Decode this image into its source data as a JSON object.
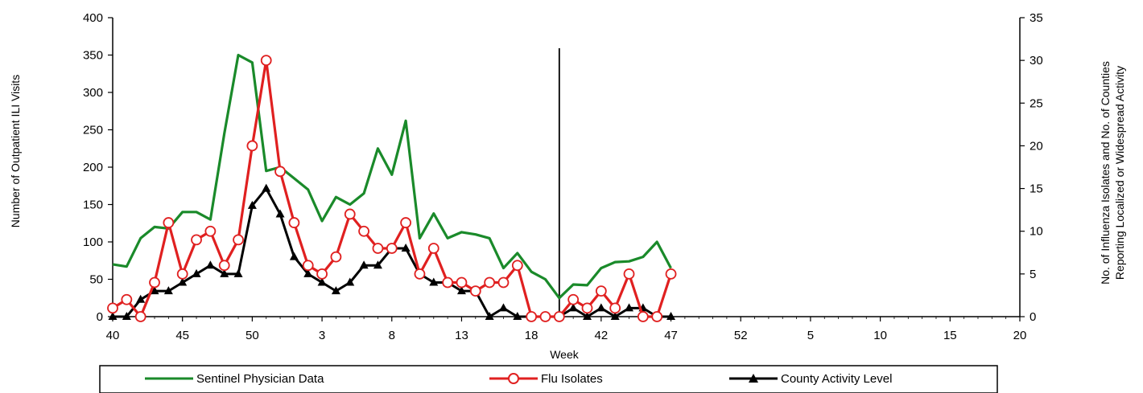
{
  "chart_data": {
    "type": "line",
    "title": "",
    "xlabel": "Week",
    "ylabel": "Number of Outpatient ILI Visits",
    "ylabel_right_line1": "No. of Influenza Isolates and No. of Counties",
    "ylabel_right_line2": "Reporting Localized or Widespread Activity",
    "ylim": [
      0,
      400
    ],
    "ylim_right": [
      0,
      35
    ],
    "yticks_left": [
      0,
      50,
      100,
      150,
      200,
      250,
      300,
      350,
      400
    ],
    "yticks_right": [
      0,
      5,
      10,
      15,
      20,
      25,
      30,
      35
    ],
    "xticks": [
      "40",
      "45",
      "50",
      "3",
      "8",
      "13",
      "18",
      "42",
      "47",
      "52",
      "5",
      "10",
      "15",
      "20"
    ],
    "x_index_range": [
      0,
      65
    ],
    "season_divider_index": 32,
    "legend": "bottom",
    "colors": {
      "sentinel": "#1a8a2a",
      "flu": "#e02020",
      "county": "#000000"
    },
    "series": [
      {
        "name": "Sentinel Physician Data",
        "axis": "left",
        "values": [
          70,
          67,
          105,
          120,
          118,
          140,
          140,
          130,
          245,
          350,
          340,
          195,
          200,
          185,
          170,
          128,
          160,
          150,
          165,
          225,
          190,
          262,
          105,
          138,
          105,
          113,
          110,
          105,
          65,
          85,
          60,
          50,
          25,
          43,
          42,
          65,
          73,
          74,
          80,
          100,
          65
        ]
      },
      {
        "name": "Flu Isolates",
        "axis": "right",
        "values": [
          1,
          2,
          0,
          4,
          11,
          5,
          9,
          10,
          6,
          9,
          20,
          30,
          17,
          11,
          6,
          5,
          7,
          12,
          10,
          8,
          8,
          11,
          5,
          8,
          4,
          4,
          3,
          4,
          4,
          6,
          0,
          0,
          0,
          2,
          1,
          3,
          1,
          5,
          0,
          0,
          5
        ]
      },
      {
        "name": "County Activity Level",
        "axis": "right",
        "values": [
          0,
          0,
          2,
          3,
          3,
          4,
          5,
          6,
          5,
          5,
          13,
          15,
          12,
          7,
          5,
          4,
          3,
          4,
          6,
          6,
          8,
          8,
          5,
          4,
          4,
          3,
          3,
          0,
          1,
          0,
          0,
          0,
          0,
          1,
          0,
          1,
          0,
          1,
          1,
          0,
          0
        ]
      }
    ]
  },
  "legend_labels": {
    "sentinel": "Sentinel Physician Data",
    "flu": "Flu Isolates",
    "county": "County Activity Level"
  }
}
